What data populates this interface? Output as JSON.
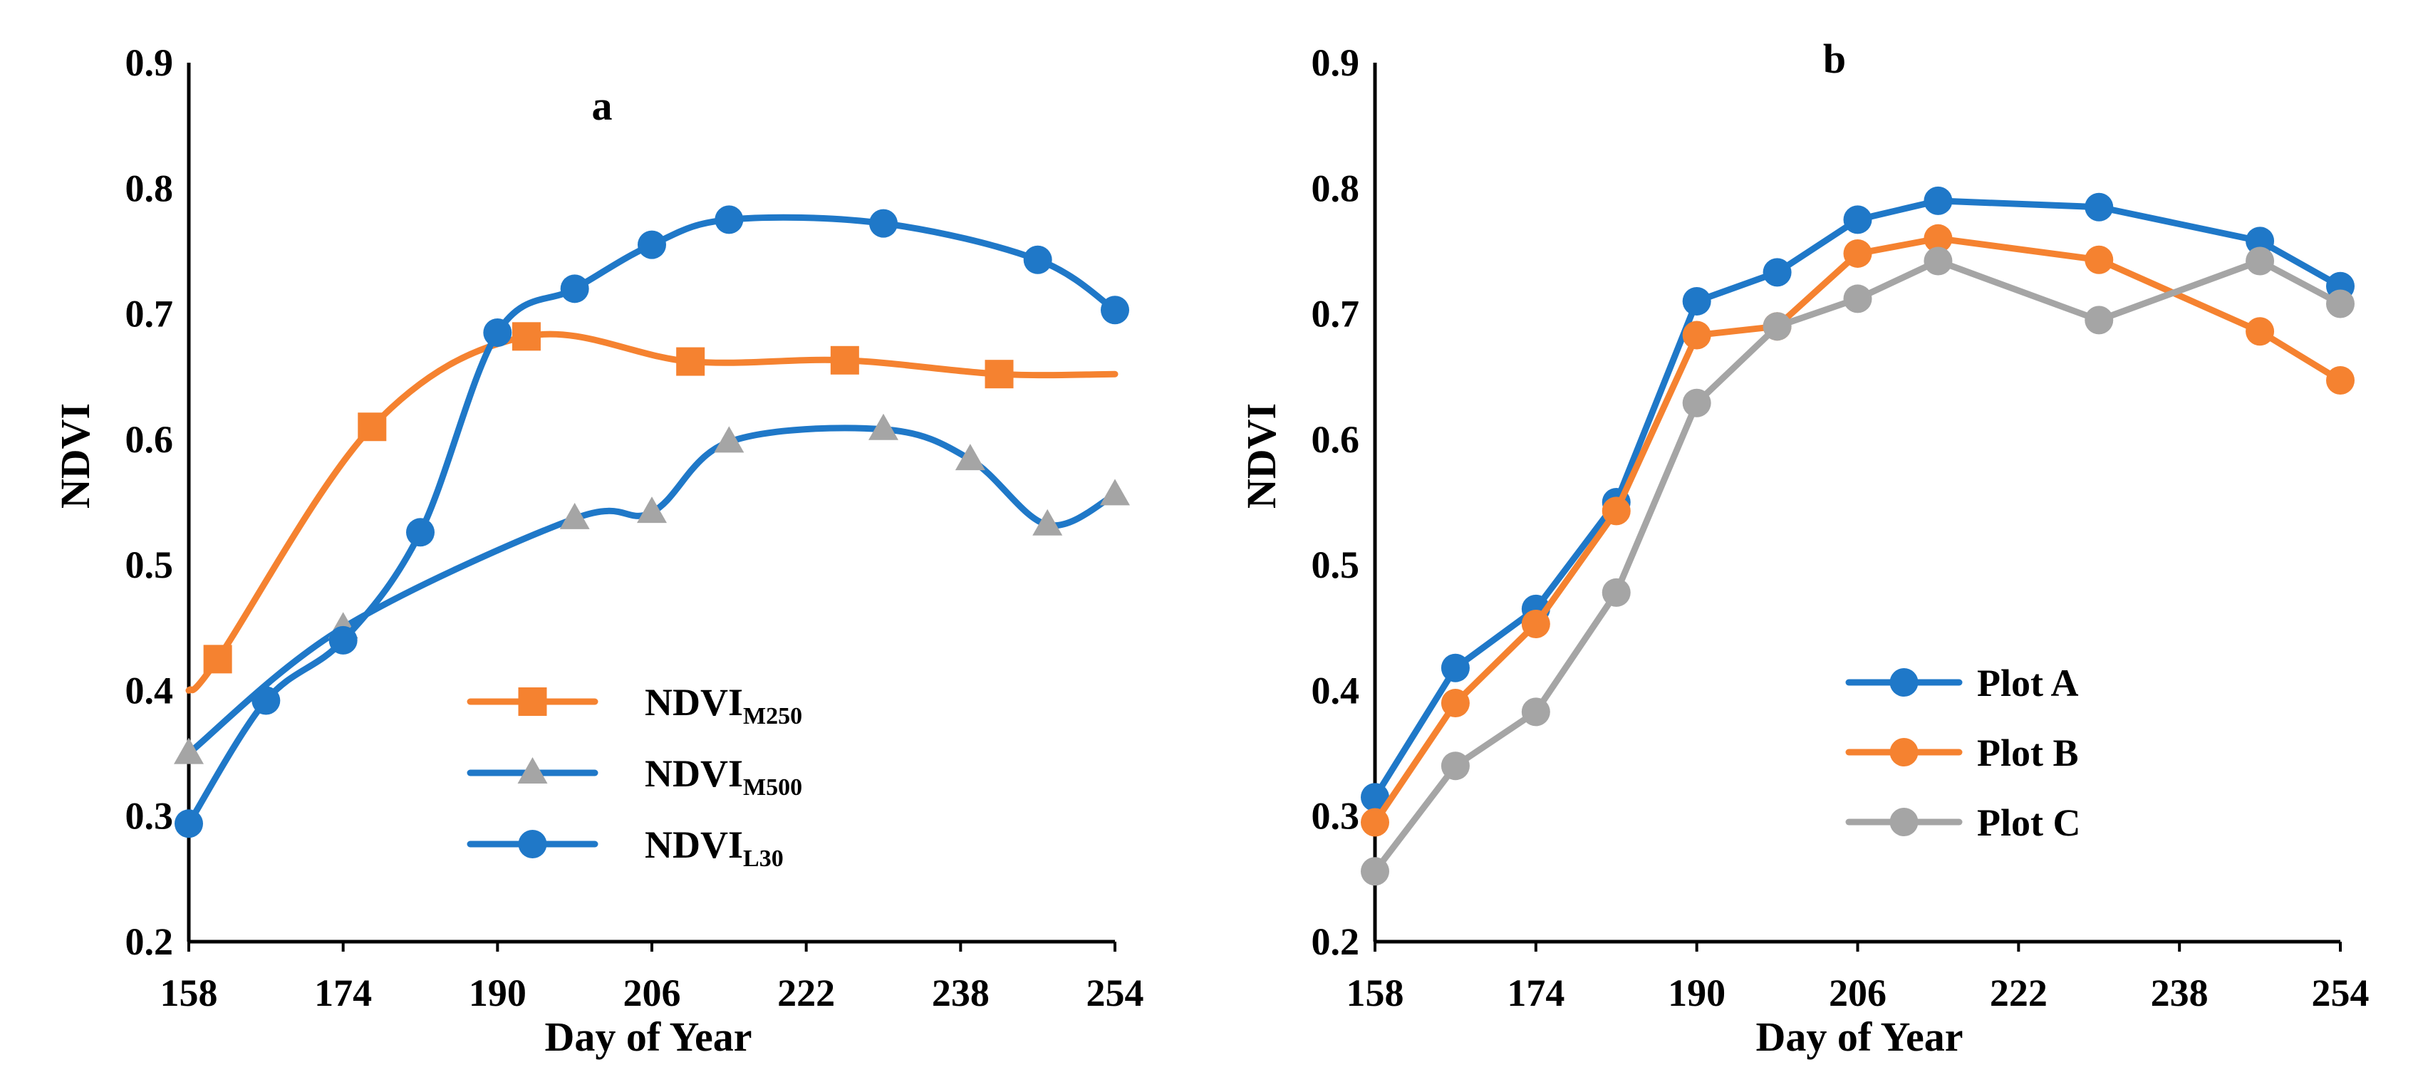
{
  "chart_data": [
    {
      "type": "line",
      "title": "a",
      "xlabel": "Day of Year",
      "ylabel": "NDVI",
      "xlim": [
        158,
        254
      ],
      "ylim": [
        0.2,
        0.9
      ],
      "xticks": [
        158,
        174,
        190,
        206,
        222,
        238,
        254
      ],
      "yticks": [
        0.2,
        0.3,
        0.4,
        0.5,
        0.6,
        0.7,
        0.8,
        0.9
      ],
      "tick_labels_x": [
        "158",
        "174",
        "190",
        "206",
        "222",
        "238",
        "254"
      ],
      "tick_labels_y": [
        "0.2",
        "0.3",
        "0.4",
        "0.5",
        "0.6",
        "0.7",
        "0.8",
        "0.9"
      ],
      "legend_position": "bottom-center",
      "series": [
        {
          "name": "NDVIM250",
          "label_main": "NDVI",
          "label_sub": "M250",
          "color": "#F58230",
          "marker": "square",
          "x": [
            158,
            161,
            177,
            193,
            210,
            226,
            242,
            254
          ],
          "y": [
            0.4,
            0.425,
            0.61,
            0.682,
            0.662,
            0.663,
            0.652,
            0.652
          ],
          "markers": [
            false,
            true,
            true,
            true,
            true,
            true,
            true,
            false
          ]
        },
        {
          "name": "NDVIM500",
          "label_main": "NDVI",
          "label_sub": "M500",
          "color": "#1F78C8",
          "marker_color": "#A5A5A5",
          "marker": "triangle",
          "x": [
            158,
            174,
            198,
            206,
            214,
            230,
            239,
            247,
            254
          ],
          "y": [
            0.35,
            0.45,
            0.537,
            0.542,
            0.598,
            0.608,
            0.584,
            0.532,
            0.556
          ],
          "markers": [
            true,
            true,
            true,
            true,
            true,
            true,
            true,
            true,
            true
          ]
        },
        {
          "name": "NDVIL30",
          "label_main": "NDVI",
          "label_sub": "L30",
          "color": "#1F78C8",
          "marker": "circle",
          "x": [
            158,
            166,
            174,
            182,
            190,
            198,
            206,
            214,
            230,
            246,
            254
          ],
          "y": [
            0.294,
            0.392,
            0.44,
            0.526,
            0.685,
            0.72,
            0.755,
            0.775,
            0.772,
            0.743,
            0.703
          ],
          "markers": [
            true,
            true,
            true,
            true,
            true,
            true,
            true,
            true,
            true,
            true,
            true
          ]
        }
      ]
    },
    {
      "type": "line",
      "title": "b",
      "xlabel": "Day of Year",
      "ylabel": "NDVI",
      "xlim": [
        158,
        254
      ],
      "ylim": [
        0.2,
        0.9
      ],
      "xticks": [
        158,
        174,
        190,
        206,
        222,
        238,
        254
      ],
      "yticks": [
        0.2,
        0.3,
        0.4,
        0.5,
        0.6,
        0.7,
        0.8,
        0.9
      ],
      "tick_labels_x": [
        "158",
        "174",
        "190",
        "206",
        "222",
        "238",
        "254"
      ],
      "tick_labels_y": [
        "0.2",
        "0.3",
        "0.4",
        "0.5",
        "0.6",
        "0.7",
        "0.8",
        "0.9"
      ],
      "legend_position": "center-right",
      "series": [
        {
          "name": "Plot A",
          "color": "#1F78C8",
          "marker": "circle",
          "x": [
            158,
            166,
            174,
            182,
            190,
            198,
            206,
            214,
            230,
            246,
            254
          ],
          "y": [
            0.315,
            0.418,
            0.465,
            0.55,
            0.71,
            0.733,
            0.775,
            0.79,
            0.785,
            0.758,
            0.722
          ],
          "markers": [
            true,
            true,
            true,
            true,
            true,
            true,
            true,
            true,
            true,
            true,
            true
          ]
        },
        {
          "name": "Plot B",
          "color": "#F58230",
          "marker": "circle",
          "x": [
            158,
            166,
            174,
            182,
            190,
            198,
            206,
            214,
            230,
            246,
            254
          ],
          "y": [
            0.295,
            0.39,
            0.453,
            0.543,
            0.683,
            0.69,
            0.748,
            0.76,
            0.743,
            0.686,
            0.647
          ],
          "markers": [
            true,
            true,
            true,
            true,
            true,
            true,
            true,
            true,
            true,
            true,
            true
          ]
        },
        {
          "name": "Plot C",
          "color": "#A5A5A5",
          "marker": "circle",
          "x": [
            158,
            166,
            174,
            182,
            190,
            198,
            206,
            214,
            230,
            246,
            254
          ],
          "y": [
            0.256,
            0.34,
            0.383,
            0.478,
            0.629,
            0.69,
            0.712,
            0.742,
            0.695,
            0.742,
            0.708
          ],
          "markers": [
            true,
            true,
            true,
            true,
            true,
            true,
            true,
            true,
            true,
            true,
            true
          ]
        }
      ]
    }
  ]
}
